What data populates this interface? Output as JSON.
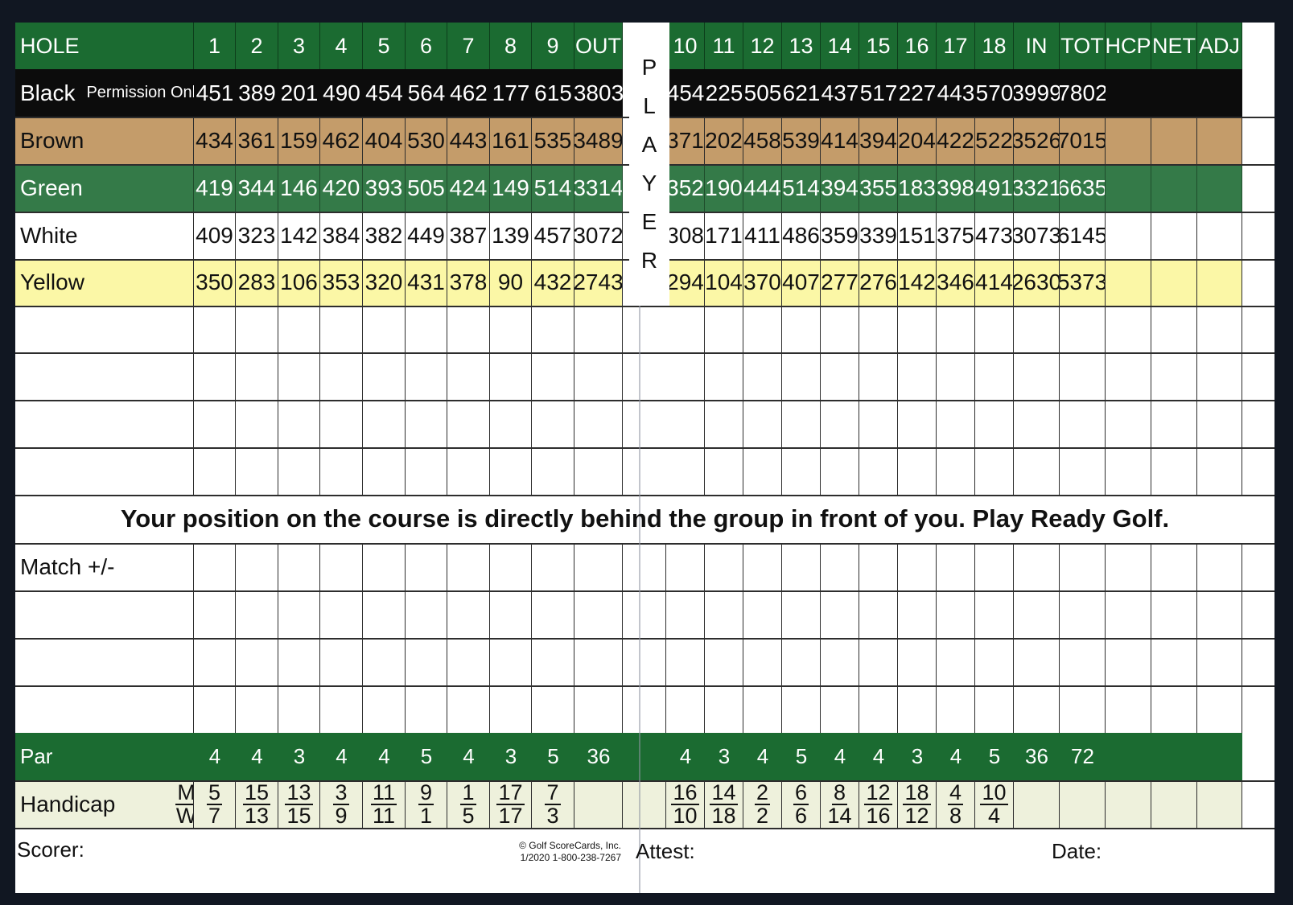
{
  "header": {
    "label": "HOLE",
    "front": [
      "1",
      "2",
      "3",
      "4",
      "5",
      "6",
      "7",
      "8",
      "9",
      "OUT"
    ],
    "back": [
      "10",
      "11",
      "12",
      "13",
      "14",
      "15",
      "16",
      "17",
      "18",
      "IN",
      "TOT",
      "HCP",
      "NET",
      "ADJ"
    ]
  },
  "player_letters": [
    "P",
    "L",
    "A",
    "Y",
    "E",
    "R"
  ],
  "tees": [
    {
      "name": "Black",
      "sub": "Permission Only",
      "style": "black",
      "front": [
        "451",
        "389",
        "201",
        "490",
        "454",
        "564",
        "462",
        "177",
        "615",
        "3803"
      ],
      "back": [
        "454",
        "225",
        "505",
        "621",
        "437",
        "517",
        "227",
        "443",
        "570",
        "3999",
        "7802",
        "",
        "",
        ""
      ]
    },
    {
      "name": "Brown",
      "sub": "",
      "style": "brown",
      "front": [
        "434",
        "361",
        "159",
        "462",
        "404",
        "530",
        "443",
        "161",
        "535",
        "3489"
      ],
      "back": [
        "371",
        "202",
        "458",
        "539",
        "414",
        "394",
        "204",
        "422",
        "522",
        "3526",
        "7015",
        "",
        "",
        ""
      ]
    },
    {
      "name": "Green",
      "sub": "",
      "style": "green",
      "front": [
        "419",
        "344",
        "146",
        "420",
        "393",
        "505",
        "424",
        "149",
        "514",
        "3314"
      ],
      "back": [
        "352",
        "190",
        "444",
        "514",
        "394",
        "355",
        "183",
        "398",
        "491",
        "3321",
        "6635",
        "",
        "",
        ""
      ]
    },
    {
      "name": "White",
      "sub": "",
      "style": "white",
      "front": [
        "409",
        "323",
        "142",
        "384",
        "382",
        "449",
        "387",
        "139",
        "457",
        "3072"
      ],
      "back": [
        "308",
        "171",
        "411",
        "486",
        "359",
        "339",
        "151",
        "375",
        "473",
        "3073",
        "6145",
        "",
        "",
        ""
      ]
    },
    {
      "name": "Yellow",
      "sub": "",
      "style": "yellow",
      "front": [
        "350",
        "283",
        "106",
        "353",
        "320",
        "431",
        "378",
        "90",
        "432",
        "2743"
      ],
      "back": [
        "294",
        "104",
        "370",
        "407",
        "277",
        "276",
        "142",
        "346",
        "414",
        "2630",
        "5373",
        "",
        "",
        ""
      ]
    }
  ],
  "message": "Your position on the course is directly behind the group in front of you. Play Ready Golf.",
  "match_label": "Match +/-",
  "par": {
    "label": "Par",
    "front": [
      "4",
      "4",
      "3",
      "4",
      "4",
      "5",
      "4",
      "3",
      "5",
      "36"
    ],
    "back": [
      "4",
      "3",
      "4",
      "5",
      "4",
      "4",
      "3",
      "4",
      "5",
      "36",
      "72",
      "",
      "",
      ""
    ]
  },
  "handicap": {
    "label": "Handicap",
    "mw": [
      "M",
      "W"
    ],
    "front": [
      [
        "5",
        "7"
      ],
      [
        "15",
        "13"
      ],
      [
        "13",
        "15"
      ],
      [
        "3",
        "9"
      ],
      [
        "11",
        "11"
      ],
      [
        "9",
        "1"
      ],
      [
        "1",
        "5"
      ],
      [
        "17",
        "17"
      ],
      [
        "7",
        "3"
      ]
    ],
    "back": [
      [
        "16",
        "10"
      ],
      [
        "14",
        "18"
      ],
      [
        "2",
        "2"
      ],
      [
        "6",
        "6"
      ],
      [
        "8",
        "14"
      ],
      [
        "12",
        "16"
      ],
      [
        "18",
        "12"
      ],
      [
        "4",
        "8"
      ],
      [
        "10",
        "4"
      ]
    ]
  },
  "footer": {
    "scorer": "Scorer:",
    "attest": "Attest:",
    "date": "Date:",
    "copyright_line1": "© Golf ScoreCards, Inc.",
    "copyright_line2": "1/2020   1-800-238-7267"
  }
}
